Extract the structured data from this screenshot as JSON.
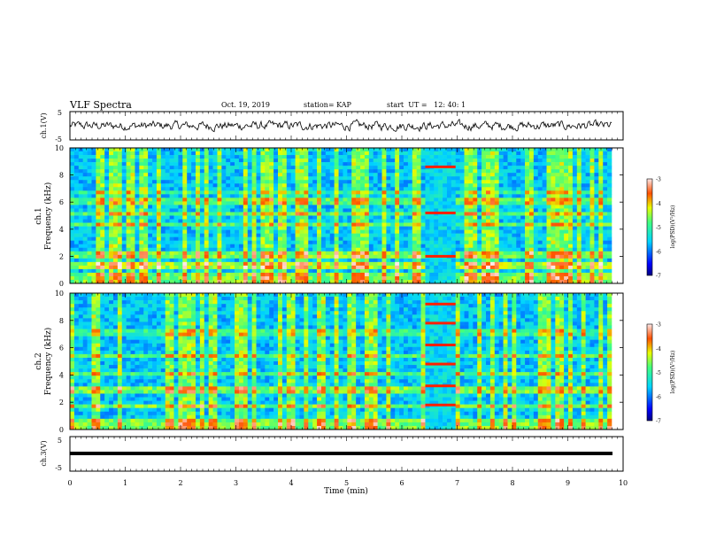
{
  "header": {
    "title": "VLF Spectra",
    "date": "Oct. 19, 2019",
    "station": "station= KAP",
    "start": "start  UT =   12: 40: 1"
  },
  "chart_data": [
    {
      "type": "line",
      "name": "ch1-voltage",
      "ylabel": "ch.1(V)",
      "xlim": [
        0,
        10
      ],
      "ylim": [
        -5,
        5
      ],
      "yticks": [
        "5",
        "-5"
      ]
    },
    {
      "type": "heatmap",
      "name": "ch1-spectrogram",
      "ylabel": "ch.1\nFrequency  (kHz)",
      "xlim": [
        0,
        10
      ],
      "ylim": [
        0,
        10
      ],
      "yticks": [
        "0",
        "2",
        "4",
        "6",
        "8",
        "10"
      ],
      "colorbar": {
        "label": "log(PSD)(V²/Hz)",
        "range": [
          -7,
          -3
        ],
        "ticks": [
          "-3",
          "-4",
          "-5",
          "-6",
          "-7"
        ]
      }
    },
    {
      "type": "heatmap",
      "name": "ch2-spectrogram",
      "ylabel": "ch.2\nFrequency  (kHz)",
      "xlim": [
        0,
        10
      ],
      "ylim": [
        0,
        10
      ],
      "yticks": [
        "0",
        "2",
        "4",
        "6",
        "8",
        "10"
      ],
      "colorbar": {
        "label": "log(PSD)(V²/Hz)",
        "range": [
          -7,
          -3
        ],
        "ticks": [
          "-3",
          "-4",
          "-5",
          "-6",
          "-7"
        ]
      }
    },
    {
      "type": "line",
      "name": "ch3-voltage",
      "ylabel": "ch.3(V)",
      "xlim": [
        0,
        10
      ],
      "ylim": [
        -5,
        5
      ],
      "yticks": [
        "5",
        "-5"
      ],
      "xlabel": "Time  (min)",
      "xticks": [
        "0",
        "1",
        "2",
        "3",
        "4",
        "5",
        "6",
        "7",
        "8",
        "9",
        "10"
      ]
    }
  ]
}
